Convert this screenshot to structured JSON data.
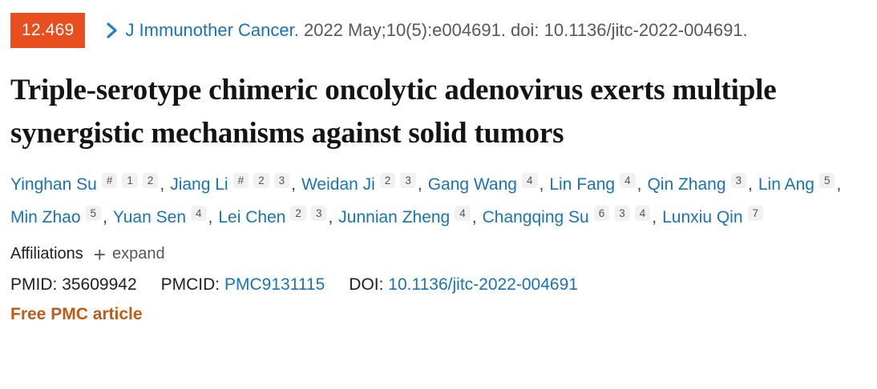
{
  "badge": {
    "impact_factor": "12.469",
    "bg_color": "#e84e1e"
  },
  "citation": {
    "journal": "J Immunother Cancer.",
    "details": " 2022 May;10(5):e004691. doi: 10.1136/jitc-2022-004691."
  },
  "title": "Triple-serotype chimeric oncolytic adenovirus exerts multiple synergistic mechanisms against solid tumors",
  "authors": [
    {
      "name": "Yinghan Su",
      "sups": [
        "#",
        "1",
        "2"
      ]
    },
    {
      "name": "Jiang Li",
      "sups": [
        "#",
        "2",
        "3"
      ]
    },
    {
      "name": "Weidan Ji",
      "sups": [
        "2",
        "3"
      ]
    },
    {
      "name": "Gang Wang",
      "sups": [
        "4"
      ]
    },
    {
      "name": "Lin Fang",
      "sups": [
        "4"
      ]
    },
    {
      "name": "Qin Zhang",
      "sups": [
        "3"
      ]
    },
    {
      "name": "Lin Ang",
      "sups": [
        "5"
      ]
    },
    {
      "name": "Min Zhao",
      "sups": [
        "5"
      ]
    },
    {
      "name": "Yuan Sen",
      "sups": [
        "4"
      ]
    },
    {
      "name": "Lei Chen",
      "sups": [
        "2",
        "3"
      ]
    },
    {
      "name": "Junnian Zheng",
      "sups": [
        "4"
      ]
    },
    {
      "name": "Changqing Su",
      "sups": [
        "6",
        "3",
        "4"
      ]
    },
    {
      "name": "Lunxiu Qin",
      "sups": [
        "7"
      ]
    }
  ],
  "authors_meta": {
    "separator": ", "
  },
  "affiliations": {
    "label": "Affiliations",
    "plus": "+",
    "expand_label": "expand"
  },
  "ids": {
    "pmid_label": "PMID:",
    "pmid": "35609942",
    "pmcid_label": "PMCID:",
    "pmcid": "PMC9131115",
    "doi_label": "DOI:",
    "doi": "10.1136/jitc-2022-004691"
  },
  "free_pmc_label": "Free PMC article",
  "colors": {
    "badge_bg": "#e84e1e",
    "link_blue": "#1a73b9",
    "citation_gray": "#55585e",
    "free_pmc_orange": "#bf5b16",
    "sup_badge_bg": "#f1f1f1"
  }
}
